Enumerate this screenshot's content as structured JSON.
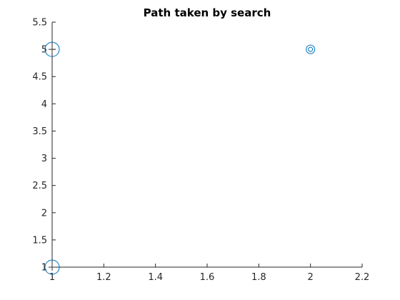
{
  "chart_data": {
    "type": "scatter",
    "title": "Path taken by search",
    "xlabel": "",
    "ylabel": "",
    "xlim": [
      1,
      2.2
    ],
    "ylim": [
      1,
      5.5
    ],
    "xticks": [
      "1",
      "1.2",
      "1.4",
      "1.6",
      "1.8",
      "2",
      "2.2"
    ],
    "yticks": [
      "1",
      "1.5",
      "2",
      "2.5",
      "3",
      "3.5",
      "4",
      "4.5",
      "5",
      "5.5"
    ],
    "grid": false,
    "marker_color": "#0072BD",
    "axis_color": "#262626",
    "points": [
      {
        "x": 1,
        "y": 5,
        "marker": "large-circle-crosshair"
      },
      {
        "x": 2,
        "y": 5,
        "marker": "double-circle"
      },
      {
        "x": 1,
        "y": 1,
        "marker": "large-circle-crosshair"
      }
    ]
  }
}
